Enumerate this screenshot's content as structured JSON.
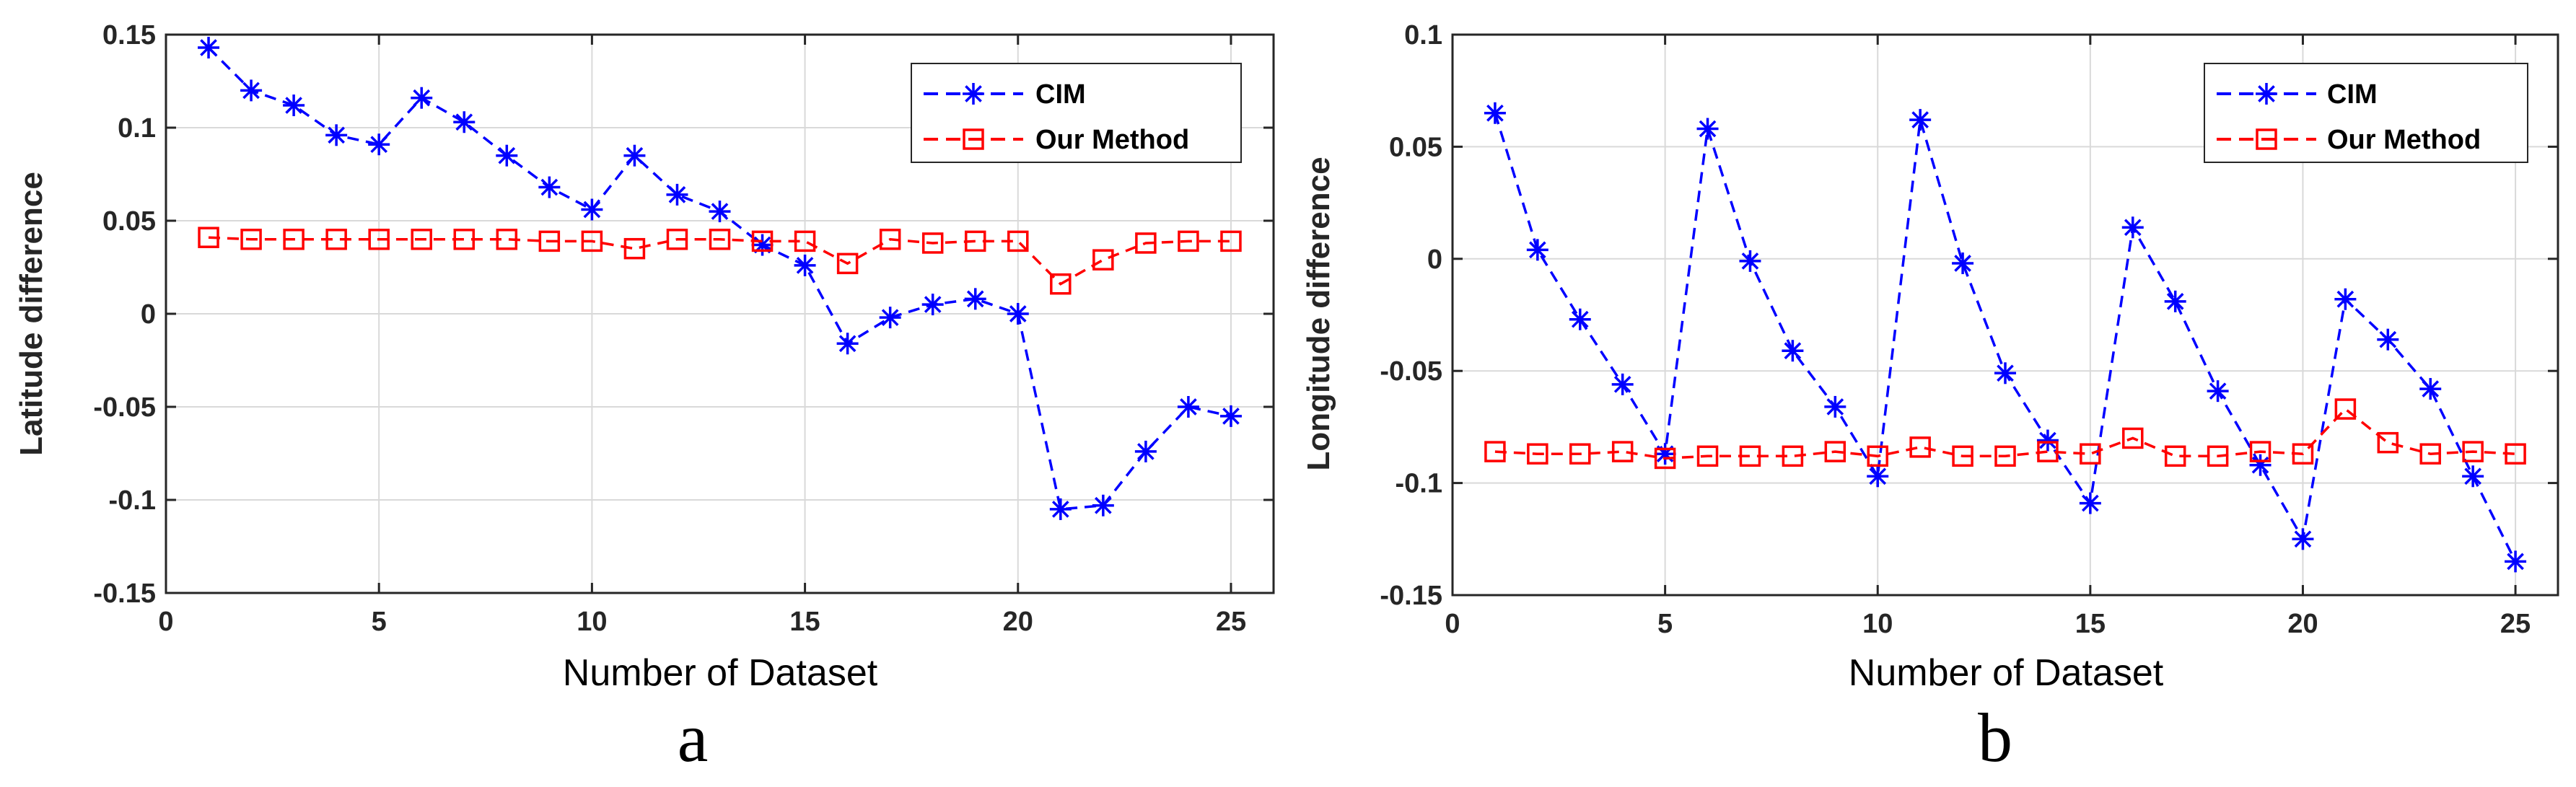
{
  "colors": {
    "cim": "#0000ff",
    "our_method": "#ff0000",
    "grid": "#d9d9d9",
    "axis": "#262626"
  },
  "chart_data": [
    {
      "type": "line",
      "panel_label": "a",
      "xlabel": "Number of Dataset",
      "ylabel": "Latitude difference",
      "xlim": [
        0,
        26
      ],
      "ylim": [
        -0.15,
        0.15
      ],
      "xticks": [
        0,
        5,
        10,
        15,
        20,
        25
      ],
      "xtick_labels": [
        "0",
        "5",
        "10",
        "15",
        "20",
        "25"
      ],
      "yticks": [
        -0.15,
        -0.1,
        -0.05,
        0,
        0.05,
        0.1,
        0.15
      ],
      "ytick_labels": [
        "-0.15",
        "-0.1",
        "-0.05",
        "0",
        "0.05",
        "0.1",
        "0.15"
      ],
      "grid": true,
      "legend_position": "top-right",
      "x": [
        1,
        2,
        3,
        4,
        5,
        6,
        7,
        8,
        9,
        10,
        11,
        12,
        13,
        14,
        15,
        16,
        17,
        18,
        19,
        20,
        21,
        22,
        23,
        24,
        25
      ],
      "series": [
        {
          "name": "CIM",
          "marker": "asterisk",
          "color": "#0000ff",
          "values": [
            0.143,
            0.12,
            0.112,
            0.096,
            0.091,
            0.116,
            0.103,
            0.085,
            0.068,
            0.056,
            0.085,
            0.064,
            0.055,
            0.037,
            0.026,
            -0.016,
            -0.002,
            0.005,
            0.008,
            0.0,
            -0.105,
            -0.103,
            -0.074,
            -0.05,
            -0.055
          ]
        },
        {
          "name": "Our Method",
          "marker": "square",
          "color": "#ff0000",
          "values": [
            0.041,
            0.04,
            0.04,
            0.04,
            0.04,
            0.04,
            0.04,
            0.04,
            0.039,
            0.039,
            0.035,
            0.04,
            0.04,
            0.039,
            0.039,
            0.027,
            0.04,
            0.038,
            0.039,
            0.039,
            0.016,
            0.029,
            0.038,
            0.039,
            0.039
          ]
        }
      ]
    },
    {
      "type": "line",
      "panel_label": "b",
      "xlabel": "Number of Dataset",
      "ylabel": "Longitude difference",
      "xlim": [
        0,
        26
      ],
      "ylim": [
        -0.15,
        0.1
      ],
      "xticks": [
        0,
        5,
        10,
        15,
        20,
        25
      ],
      "xtick_labels": [
        "0",
        "5",
        "10",
        "15",
        "20",
        "25"
      ],
      "yticks": [
        -0.15,
        -0.1,
        -0.05,
        0,
        0.05,
        0.1
      ],
      "ytick_labels": [
        "-0.15",
        "-0.1",
        "-0.05",
        "0",
        "0.05",
        "0.1"
      ],
      "grid": true,
      "legend_position": "top-right",
      "x": [
        1,
        2,
        3,
        4,
        5,
        6,
        7,
        8,
        9,
        10,
        11,
        12,
        13,
        14,
        15,
        16,
        17,
        18,
        19,
        20,
        21,
        22,
        23,
        24,
        25
      ],
      "series": [
        {
          "name": "CIM",
          "marker": "asterisk",
          "color": "#0000ff",
          "values": [
            0.065,
            0.004,
            -0.027,
            -0.056,
            -0.087,
            0.058,
            -0.001,
            -0.041,
            -0.066,
            -0.097,
            0.062,
            -0.002,
            -0.051,
            -0.081,
            -0.109,
            0.014,
            -0.019,
            -0.059,
            -0.092,
            -0.125,
            -0.018,
            -0.036,
            -0.058,
            -0.097,
            -0.135
          ]
        },
        {
          "name": "Our Method",
          "marker": "square",
          "color": "#ff0000",
          "values": [
            -0.086,
            -0.087,
            -0.087,
            -0.086,
            -0.089,
            -0.088,
            -0.088,
            -0.088,
            -0.086,
            -0.088,
            -0.084,
            -0.088,
            -0.088,
            -0.086,
            -0.087,
            -0.08,
            -0.088,
            -0.088,
            -0.086,
            -0.087,
            -0.067,
            -0.082,
            -0.087,
            -0.086,
            -0.087
          ]
        }
      ]
    }
  ]
}
